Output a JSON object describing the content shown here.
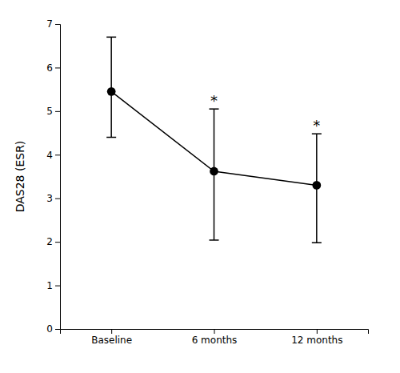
{
  "chart_data": {
    "type": "line",
    "categories": [
      "Baseline",
      "6 months",
      "12 months"
    ],
    "values": [
      5.45,
      3.62,
      3.3
    ],
    "error_upper": [
      1.25,
      1.43,
      1.18
    ],
    "error_lower": [
      1.05,
      1.58,
      1.32
    ],
    "ylabel": "DAS28 (ESR)",
    "ylim": [
      0,
      7
    ],
    "yticks": [
      0,
      1,
      2,
      3,
      4,
      5,
      6,
      7
    ],
    "color": "#000000",
    "marker": "circle",
    "annotations": [
      {
        "text": "*",
        "category": "6 months"
      },
      {
        "text": "*",
        "category": "12 months"
      }
    ]
  }
}
